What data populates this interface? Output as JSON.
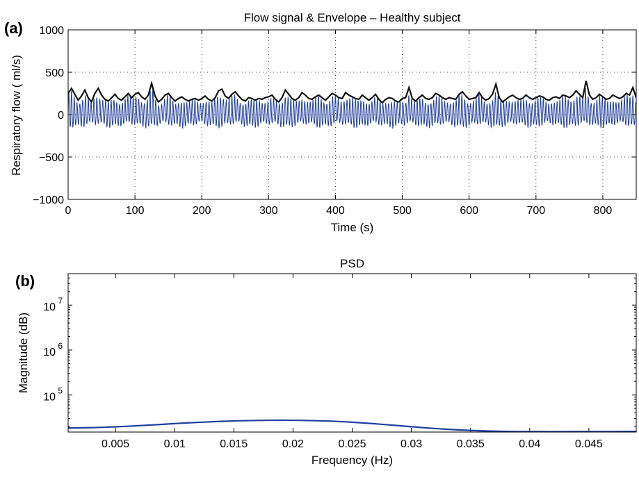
{
  "panels": {
    "a": {
      "label": "(a)"
    },
    "b": {
      "label": "(b)"
    }
  },
  "chart_data": [
    {
      "type": "line",
      "title": "Flow signal & Envelope  – Healthy subject",
      "xlabel": "Time (s)",
      "ylabel": "Respiratory flow ( ml/s)",
      "xlim": [
        0,
        850
      ],
      "ylim": [
        -1000,
        1000
      ],
      "xticks": [
        0,
        100,
        200,
        300,
        400,
        500,
        600,
        700,
        800
      ],
      "yticks": [
        -1000,
        -500,
        0,
        500,
        1000
      ],
      "grid": true,
      "grid_style": "dotted",
      "series": [
        {
          "role": "flow-signal",
          "color": "#1f3f9f",
          "approx_breathing_period_s": 4.2,
          "approx_range": [
            -230,
            300
          ],
          "approx_mean_peak": 200,
          "approx_mean_trough": -130
        },
        {
          "role": "envelope",
          "color": "#111111",
          "x": [
            0,
            5,
            10,
            15,
            20,
            25,
            30,
            35,
            40,
            45,
            50,
            55,
            60,
            65,
            70,
            75,
            80,
            85,
            90,
            95,
            100,
            105,
            110,
            115,
            120,
            125,
            130,
            135,
            140,
            145,
            150,
            155,
            160,
            165,
            170,
            175,
            180,
            185,
            190,
            195,
            200,
            205,
            210,
            215,
            220,
            225,
            230,
            235,
            240,
            245,
            250,
            255,
            260,
            265,
            270,
            275,
            280,
            285,
            290,
            295,
            300,
            305,
            310,
            315,
            320,
            325,
            330,
            335,
            340,
            345,
            350,
            355,
            360,
            365,
            370,
            375,
            380,
            385,
            390,
            395,
            400,
            405,
            410,
            415,
            420,
            425,
            430,
            435,
            440,
            445,
            450,
            455,
            460,
            465,
            470,
            475,
            480,
            485,
            490,
            495,
            500,
            505,
            510,
            515,
            520,
            525,
            530,
            535,
            540,
            545,
            550,
            555,
            560,
            565,
            570,
            575,
            580,
            585,
            590,
            595,
            600,
            605,
            610,
            615,
            620,
            625,
            630,
            635,
            640,
            645,
            650,
            655,
            660,
            665,
            670,
            675,
            680,
            685,
            690,
            695,
            700,
            705,
            710,
            715,
            720,
            725,
            730,
            735,
            740,
            745,
            750,
            755,
            760,
            765,
            770,
            775,
            780,
            785,
            790,
            795,
            800,
            805,
            810,
            815,
            820,
            825,
            830,
            835,
            840,
            845,
            850
          ],
          "y": [
            250,
            310,
            240,
            170,
            220,
            290,
            200,
            150,
            250,
            310,
            230,
            180,
            160,
            200,
            240,
            190,
            170,
            210,
            250,
            200,
            240,
            260,
            210,
            180,
            230,
            370,
            220,
            150,
            180,
            230,
            250,
            200,
            160,
            190,
            210,
            180,
            160,
            180,
            190,
            170,
            190,
            220,
            180,
            160,
            200,
            280,
            300,
            220,
            190,
            240,
            270,
            220,
            180,
            160,
            200,
            190,
            170,
            190,
            180,
            200,
            210,
            230,
            180,
            150,
            200,
            290,
            240,
            190,
            170,
            200,
            260,
            230,
            190,
            180,
            210,
            230,
            200,
            170,
            210,
            250,
            230,
            200,
            190,
            260,
            230,
            210,
            190,
            180,
            230,
            200,
            170,
            200,
            240,
            180,
            140,
            180,
            200,
            190,
            160,
            150,
            190,
            200,
            320,
            190,
            160,
            200,
            230,
            190,
            180,
            200,
            250,
            230,
            200,
            180,
            200,
            190,
            180,
            240,
            270,
            220,
            180,
            190,
            200,
            260,
            200,
            170,
            190,
            240,
            360,
            200,
            150,
            180,
            210,
            230,
            200,
            180,
            190,
            230,
            200,
            180,
            200,
            220,
            210,
            180,
            170,
            200,
            210,
            190,
            230,
            220,
            200,
            230,
            280,
            240,
            200,
            400,
            230,
            180,
            200,
            240,
            210,
            180,
            190,
            230,
            210,
            190,
            210,
            250,
            230,
            320,
            200
          ]
        }
      ]
    },
    {
      "type": "line",
      "title": "PSD",
      "xlabel": "Frequency (Hz)",
      "ylabel": "Magnitude (dB)",
      "xlim": [
        0.001,
        0.049
      ],
      "ylim": [
        15000,
        50000000
      ],
      "yscale": "log",
      "xticks": [
        0.005,
        0.01,
        0.015,
        0.02,
        0.025,
        0.03,
        0.035,
        0.04,
        0.045
      ],
      "xtick_labels": [
        "0.005",
        "0.01",
        "0.015",
        "0.02",
        "0.025",
        "0.03",
        "0.035",
        "0.04",
        "0.045"
      ],
      "yticks": [
        100000,
        1000000,
        10000000
      ],
      "ytick_labels": [
        "10",
        "10",
        "10"
      ],
      "ytick_exponents": [
        "5",
        "6",
        "7"
      ],
      "grid": false,
      "series": [
        {
          "role": "psd",
          "color": "#1f3f9f",
          "x": [
            0.001,
            0.003,
            0.005,
            0.007,
            0.009,
            0.011,
            0.013,
            0.015,
            0.017,
            0.019,
            0.021,
            0.023,
            0.025,
            0.027,
            0.029,
            0.031,
            0.033,
            0.035,
            0.037,
            0.039,
            0.041,
            0.043,
            0.045,
            0.047,
            0.049
          ],
          "y": [
            18500,
            18800,
            19600,
            20800,
            22300,
            23900,
            25300,
            26500,
            27200,
            27500,
            27200,
            26300,
            24800,
            22800,
            20700,
            18800,
            17300,
            16300,
            15700,
            15400,
            15300,
            15300,
            15350,
            15400,
            15500
          ]
        }
      ]
    }
  ]
}
